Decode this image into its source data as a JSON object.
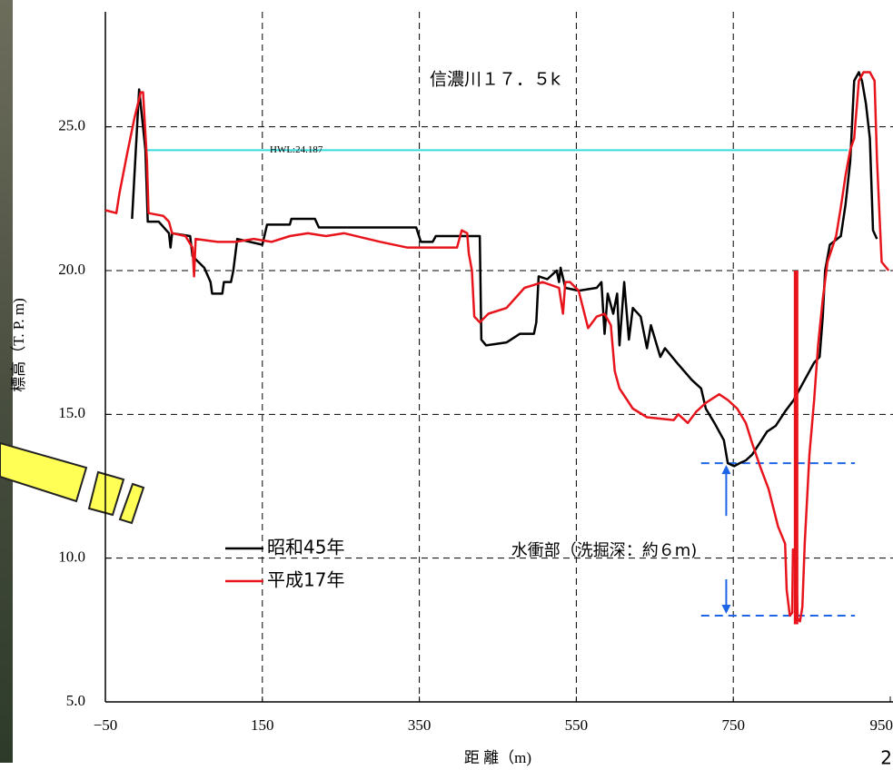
{
  "chart_data": {
    "type": "line",
    "title": "信濃川１７．５k",
    "x_label": "距 離（m)",
    "y_label": "標高（T. P. m)",
    "xlim": [
      -50,
      950
    ],
    "ylim": [
      5,
      29
    ],
    "xticks": [
      {
        "value": -50,
        "label": "−50"
      },
      150,
      350,
      550,
      750,
      950
    ],
    "yticks": [
      {
        "value": 5,
        "label": "5.0"
      },
      {
        "value": 10,
        "label": "10.0"
      },
      {
        "value": 15,
        "label": "15.0"
      },
      {
        "value": 20,
        "label": "20.0"
      },
      {
        "value": 25,
        "label": "25.0"
      }
    ],
    "grid": true,
    "series": [
      {
        "name": "昭和45年",
        "color": "#000000",
        "x": [
          -16,
          -7,
          1,
          4,
          18,
          31,
          33,
          35,
          58,
          61,
          76,
          84,
          86,
          99,
          101,
          110,
          113,
          118,
          150,
          156,
          185,
          187,
          217,
          222,
          231,
          346,
          352,
          367,
          371,
          427,
          429,
          435,
          461,
          478,
          496,
          499,
          502,
          513,
          525,
          528,
          530,
          536,
          553,
          576,
          582,
          586,
          590,
          597,
          602,
          605,
          611,
          617,
          622,
          632,
          640,
          645,
          657,
          663,
          678,
          697,
          709,
          715,
          726,
          738,
          743,
          751,
          758,
          766,
          774,
          786,
          793,
          804,
          816,
          827,
          841,
          853,
          860,
          864,
          867,
          873,
          887,
          893,
          899,
          904,
          910,
          914,
          919,
          924,
          928,
          933
        ],
        "values": [
          21.8,
          26.3,
          24.2,
          21.7,
          21.7,
          21.3,
          20.8,
          21.3,
          21.2,
          20.5,
          20.1,
          19.6,
          19.2,
          19.2,
          19.6,
          19.6,
          20.0,
          21.1,
          20.9,
          21.6,
          21.6,
          21.8,
          21.8,
          21.5,
          21.5,
          21.5,
          21.0,
          21.0,
          21.2,
          21.2,
          17.6,
          17.4,
          17.5,
          17.8,
          17.8,
          18.2,
          19.8,
          19.7,
          20.0,
          19.6,
          20.1,
          19.4,
          19.3,
          19.4,
          19.6,
          17.8,
          19.2,
          18.5,
          19.2,
          17.4,
          19.6,
          17.6,
          18.7,
          18.4,
          17.3,
          18.1,
          17.0,
          17.3,
          16.8,
          16.2,
          15.9,
          15.2,
          14.7,
          14.1,
          13.3,
          13.2,
          13.3,
          13.4,
          13.6,
          14.1,
          14.4,
          14.6,
          15.1,
          15.5,
          16.2,
          16.8,
          17.0,
          18.4,
          20.0,
          20.9,
          21.2,
          22.3,
          23.8,
          26.6,
          26.9,
          26.6,
          25.8,
          24.6,
          21.4,
          21.1
        ]
      },
      {
        "name": "平成17年",
        "color": "#e8141c",
        "x": [
          -50,
          -36,
          -32,
          -22,
          -13,
          -5,
          -2,
          3,
          5,
          24,
          31,
          35,
          52,
          61,
          63,
          65,
          93,
          116,
          139,
          162,
          185,
          208,
          231,
          254,
          300,
          335,
          369,
          398,
          404,
          411,
          413,
          417,
          420,
          427,
          438,
          461,
          484,
          496,
          507,
          528,
          533,
          536,
          542,
          553,
          565,
          576,
          586,
          594,
          599,
          605,
          622,
          640,
          674,
          680,
          692,
          703,
          715,
          732,
          743,
          755,
          766,
          774,
          784,
          795,
          807,
          816,
          818,
          822,
          825,
          826,
          830,
          832,
          835,
          838,
          841,
          847,
          853,
          858,
          864,
          870,
          881,
          887,
          893,
          899,
          904,
          910,
          916,
          924,
          930,
          933,
          939,
          948
        ],
        "values": [
          22.1,
          22.0,
          22.7,
          24.1,
          25.3,
          26.2,
          26.2,
          23.8,
          22.0,
          21.9,
          21.7,
          21.3,
          21.2,
          20.8,
          19.8,
          21.1,
          21.0,
          21.0,
          21.1,
          21.0,
          21.2,
          21.3,
          21.2,
          21.3,
          21.0,
          20.8,
          20.8,
          20.8,
          21.4,
          21.3,
          20.6,
          20.0,
          18.4,
          18.2,
          18.5,
          18.7,
          19.4,
          19.5,
          19.6,
          19.4,
          18.5,
          19.6,
          19.6,
          19.3,
          18.0,
          18.4,
          18.5,
          18.1,
          16.5,
          15.9,
          15.2,
          14.9,
          14.8,
          15.0,
          14.7,
          15.1,
          15.4,
          15.7,
          15.5,
          15.2,
          14.7,
          14.0,
          13.2,
          12.4,
          11.1,
          10.5,
          8.9,
          8.0,
          8.1,
          10.3,
          9.8,
          7.9,
          7.8,
          8.3,
          10.5,
          13.6,
          15.5,
          17.4,
          19.0,
          20.3,
          21.2,
          22.2,
          23.3,
          24.2,
          24.6,
          26.6,
          26.9,
          26.9,
          26.6,
          23.9,
          20.3,
          20.0
        ]
      }
    ],
    "hwl": {
      "label": "HWL:24.187",
      "value": 24.187,
      "x": [
        0,
        896
      ],
      "color": "#33dddd"
    },
    "pier": {
      "x": 830,
      "y": [
        20.0,
        7.7
      ],
      "color": "#e8141c"
    },
    "scour": {
      "label": "水衝部（洗掘深：約６m)",
      "levels": [
        13.3,
        8.0
      ],
      "x": [
        709,
        905
      ],
      "arrow_x": 741,
      "color": "#1e64e6"
    },
    "page_number": "2"
  }
}
